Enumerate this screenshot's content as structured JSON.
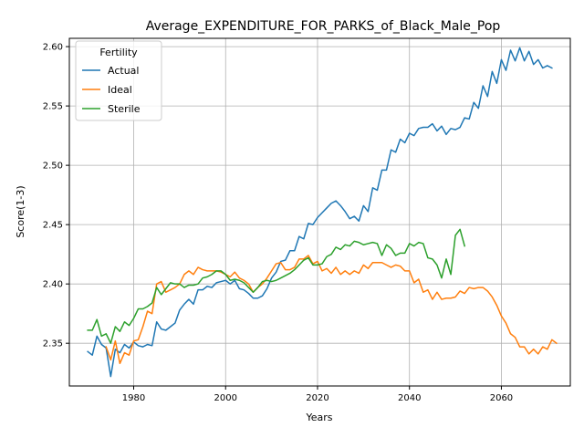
{
  "chart_data": {
    "type": "line",
    "title": "Average_EXPENDITURE_FOR_PARKS_of_Black_Male_Pop",
    "xlabel": "Years",
    "ylabel": "Score(1-3)",
    "xlim": [
      1966,
      2075
    ],
    "ylim": [
      2.314,
      2.607
    ],
    "xticks": [
      1980,
      2000,
      2020,
      2040,
      2060
    ],
    "yticks": [
      2.35,
      2.4,
      2.45,
      2.5,
      2.55,
      2.6
    ],
    "ytick_labels": [
      "2.35",
      "2.40",
      "2.45",
      "2.50",
      "2.55",
      "2.60"
    ],
    "grid": true,
    "legend": {
      "title": "Fertility",
      "placement": "top-left"
    },
    "series": [
      {
        "name": "Actual",
        "color": "#1f77b4",
        "x_start": 1970,
        "values": [
          2.343,
          2.34,
          2.356,
          2.349,
          2.346,
          2.322,
          2.345,
          2.342,
          2.349,
          2.346,
          2.351,
          2.348,
          2.347,
          2.349,
          2.348,
          2.368,
          2.362,
          2.361,
          2.364,
          2.367,
          2.378,
          2.383,
          2.387,
          2.383,
          2.395,
          2.395,
          2.398,
          2.397,
          2.401,
          2.402,
          2.403,
          2.4,
          2.403,
          2.396,
          2.395,
          2.392,
          2.388,
          2.388,
          2.39,
          2.396,
          2.405,
          2.41,
          2.419,
          2.42,
          2.428,
          2.428,
          2.44,
          2.438,
          2.451,
          2.45,
          2.456,
          2.46,
          2.464,
          2.468,
          2.47,
          2.466,
          2.461,
          2.455,
          2.457,
          2.453,
          2.466,
          2.461,
          2.481,
          2.479,
          2.496,
          2.496,
          2.513,
          2.511,
          2.522,
          2.519,
          2.527,
          2.525,
          2.531,
          2.532,
          2.532,
          2.535,
          2.529,
          2.533,
          2.526,
          2.531,
          2.53,
          2.532,
          2.54,
          2.539,
          2.553,
          2.548,
          2.567,
          2.558,
          2.579,
          2.569,
          2.589,
          2.58,
          2.597,
          2.588,
          2.599,
          2.588,
          2.596,
          2.585,
          2.589,
          2.582,
          2.584,
          2.582
        ]
      },
      {
        "name": "Ideal",
        "color": "#ff7f0e",
        "x_start": 1970,
        "values": [
          null,
          null,
          null,
          null,
          2.347,
          2.336,
          2.352,
          2.333,
          2.342,
          2.34,
          2.352,
          2.353,
          2.364,
          2.377,
          2.375,
          2.4,
          2.402,
          2.393,
          2.395,
          2.397,
          2.4,
          2.408,
          2.411,
          2.408,
          2.414,
          2.412,
          2.411,
          2.411,
          2.411,
          2.41,
          2.408,
          2.406,
          2.41,
          2.405,
          2.403,
          2.4,
          2.393,
          2.397,
          2.4,
          2.405,
          2.411,
          2.417,
          2.418,
          2.412,
          2.412,
          2.414,
          2.421,
          2.421,
          2.424,
          2.417,
          2.419,
          2.411,
          2.413,
          2.409,
          2.414,
          2.408,
          2.411,
          2.408,
          2.411,
          2.409,
          2.416,
          2.413,
          2.418,
          2.418,
          2.418,
          2.416,
          2.414,
          2.416,
          2.415,
          2.411,
          2.411,
          2.401,
          2.404,
          2.393,
          2.395,
          2.387,
          2.393,
          2.387,
          2.388,
          2.388,
          2.389,
          2.394,
          2.392,
          2.397,
          2.396,
          2.397,
          2.397,
          2.394,
          2.389,
          2.382,
          2.373,
          2.367,
          2.358,
          2.355,
          2.347,
          2.347,
          2.341,
          2.345,
          2.341,
          2.347,
          2.345,
          2.353,
          2.35
        ]
      },
      {
        "name": "Sterile",
        "color": "#2ca02c",
        "x_start": 1970,
        "values": [
          2.361,
          2.361,
          2.37,
          2.356,
          2.358,
          2.35,
          2.364,
          2.36,
          2.368,
          2.365,
          2.371,
          2.379,
          2.379,
          2.381,
          2.384,
          2.397,
          2.391,
          2.396,
          2.401,
          2.4,
          2.4,
          2.397,
          2.399,
          2.399,
          2.4,
          2.405,
          2.406,
          2.408,
          2.411,
          2.411,
          2.408,
          2.403,
          2.404,
          2.403,
          2.401,
          2.397,
          2.393,
          2.397,
          2.402,
          2.403,
          2.402,
          2.403,
          2.405,
          2.407,
          2.409,
          2.412,
          2.416,
          2.42,
          2.422,
          2.416,
          2.416,
          2.417,
          2.423,
          2.425,
          2.431,
          2.429,
          2.433,
          2.432,
          2.436,
          2.435,
          2.433,
          2.434,
          2.435,
          2.434,
          2.424,
          2.433,
          2.43,
          2.424,
          2.426,
          2.426,
          2.434,
          2.432,
          2.435,
          2.434,
          2.422,
          2.421,
          2.416,
          2.405,
          2.421,
          2.408,
          2.441,
          2.446,
          2.432
        ]
      }
    ]
  }
}
